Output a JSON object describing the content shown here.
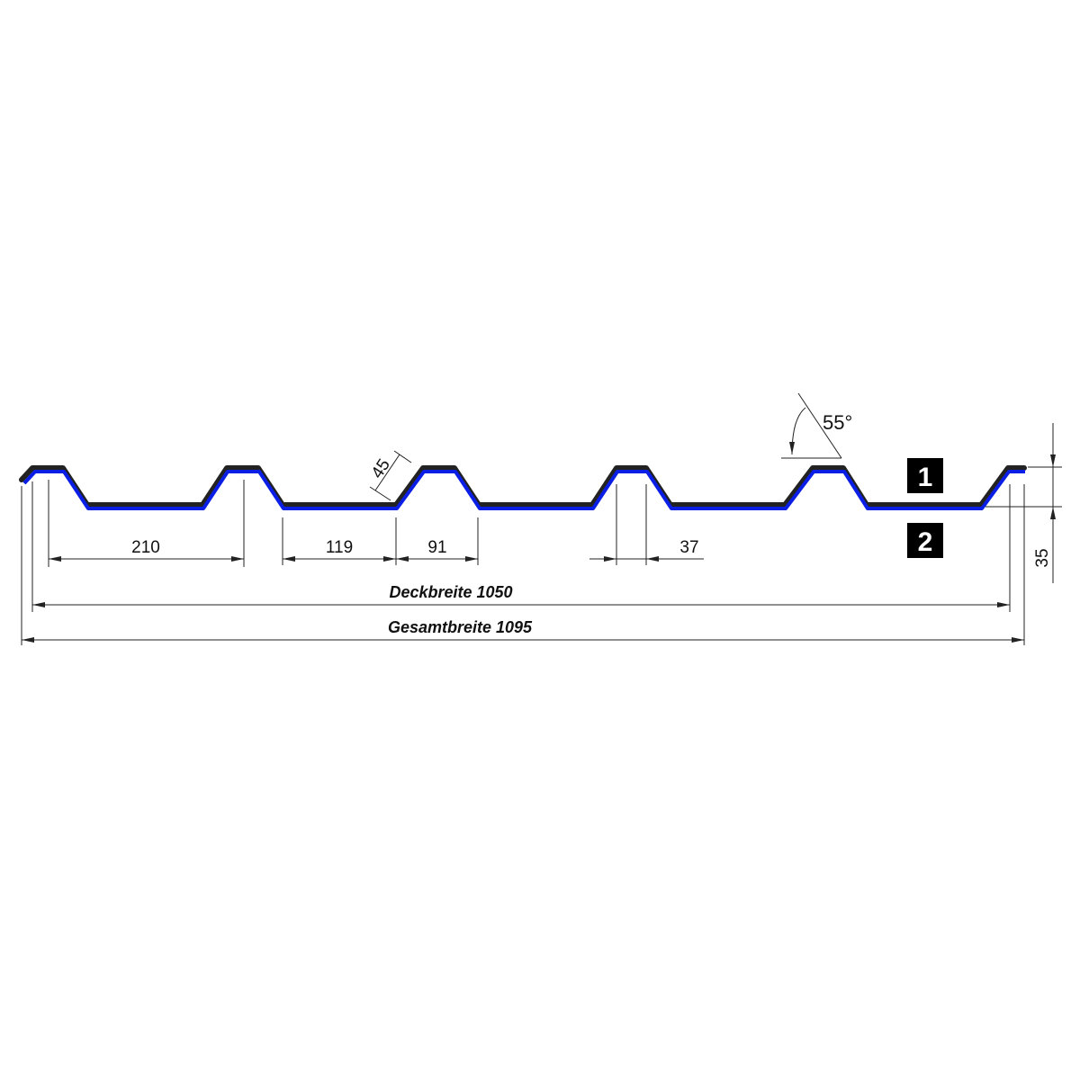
{
  "colors": {
    "profile_outer": "#222222",
    "profile_inner": "#0a1ee6",
    "dimension": "#222222",
    "label_box": "#000000"
  },
  "dimensions": {
    "rib_spacing": "210",
    "valley_width": "119",
    "rib_base": "91",
    "rib_top": "37",
    "flank_length": "45",
    "flank_angle": "55°",
    "height": "35",
    "cover_width": "Deckbreite 1050",
    "total_width": "Gesamtbreite 1095"
  },
  "labels": {
    "side_top": "1",
    "side_bottom": "2"
  }
}
